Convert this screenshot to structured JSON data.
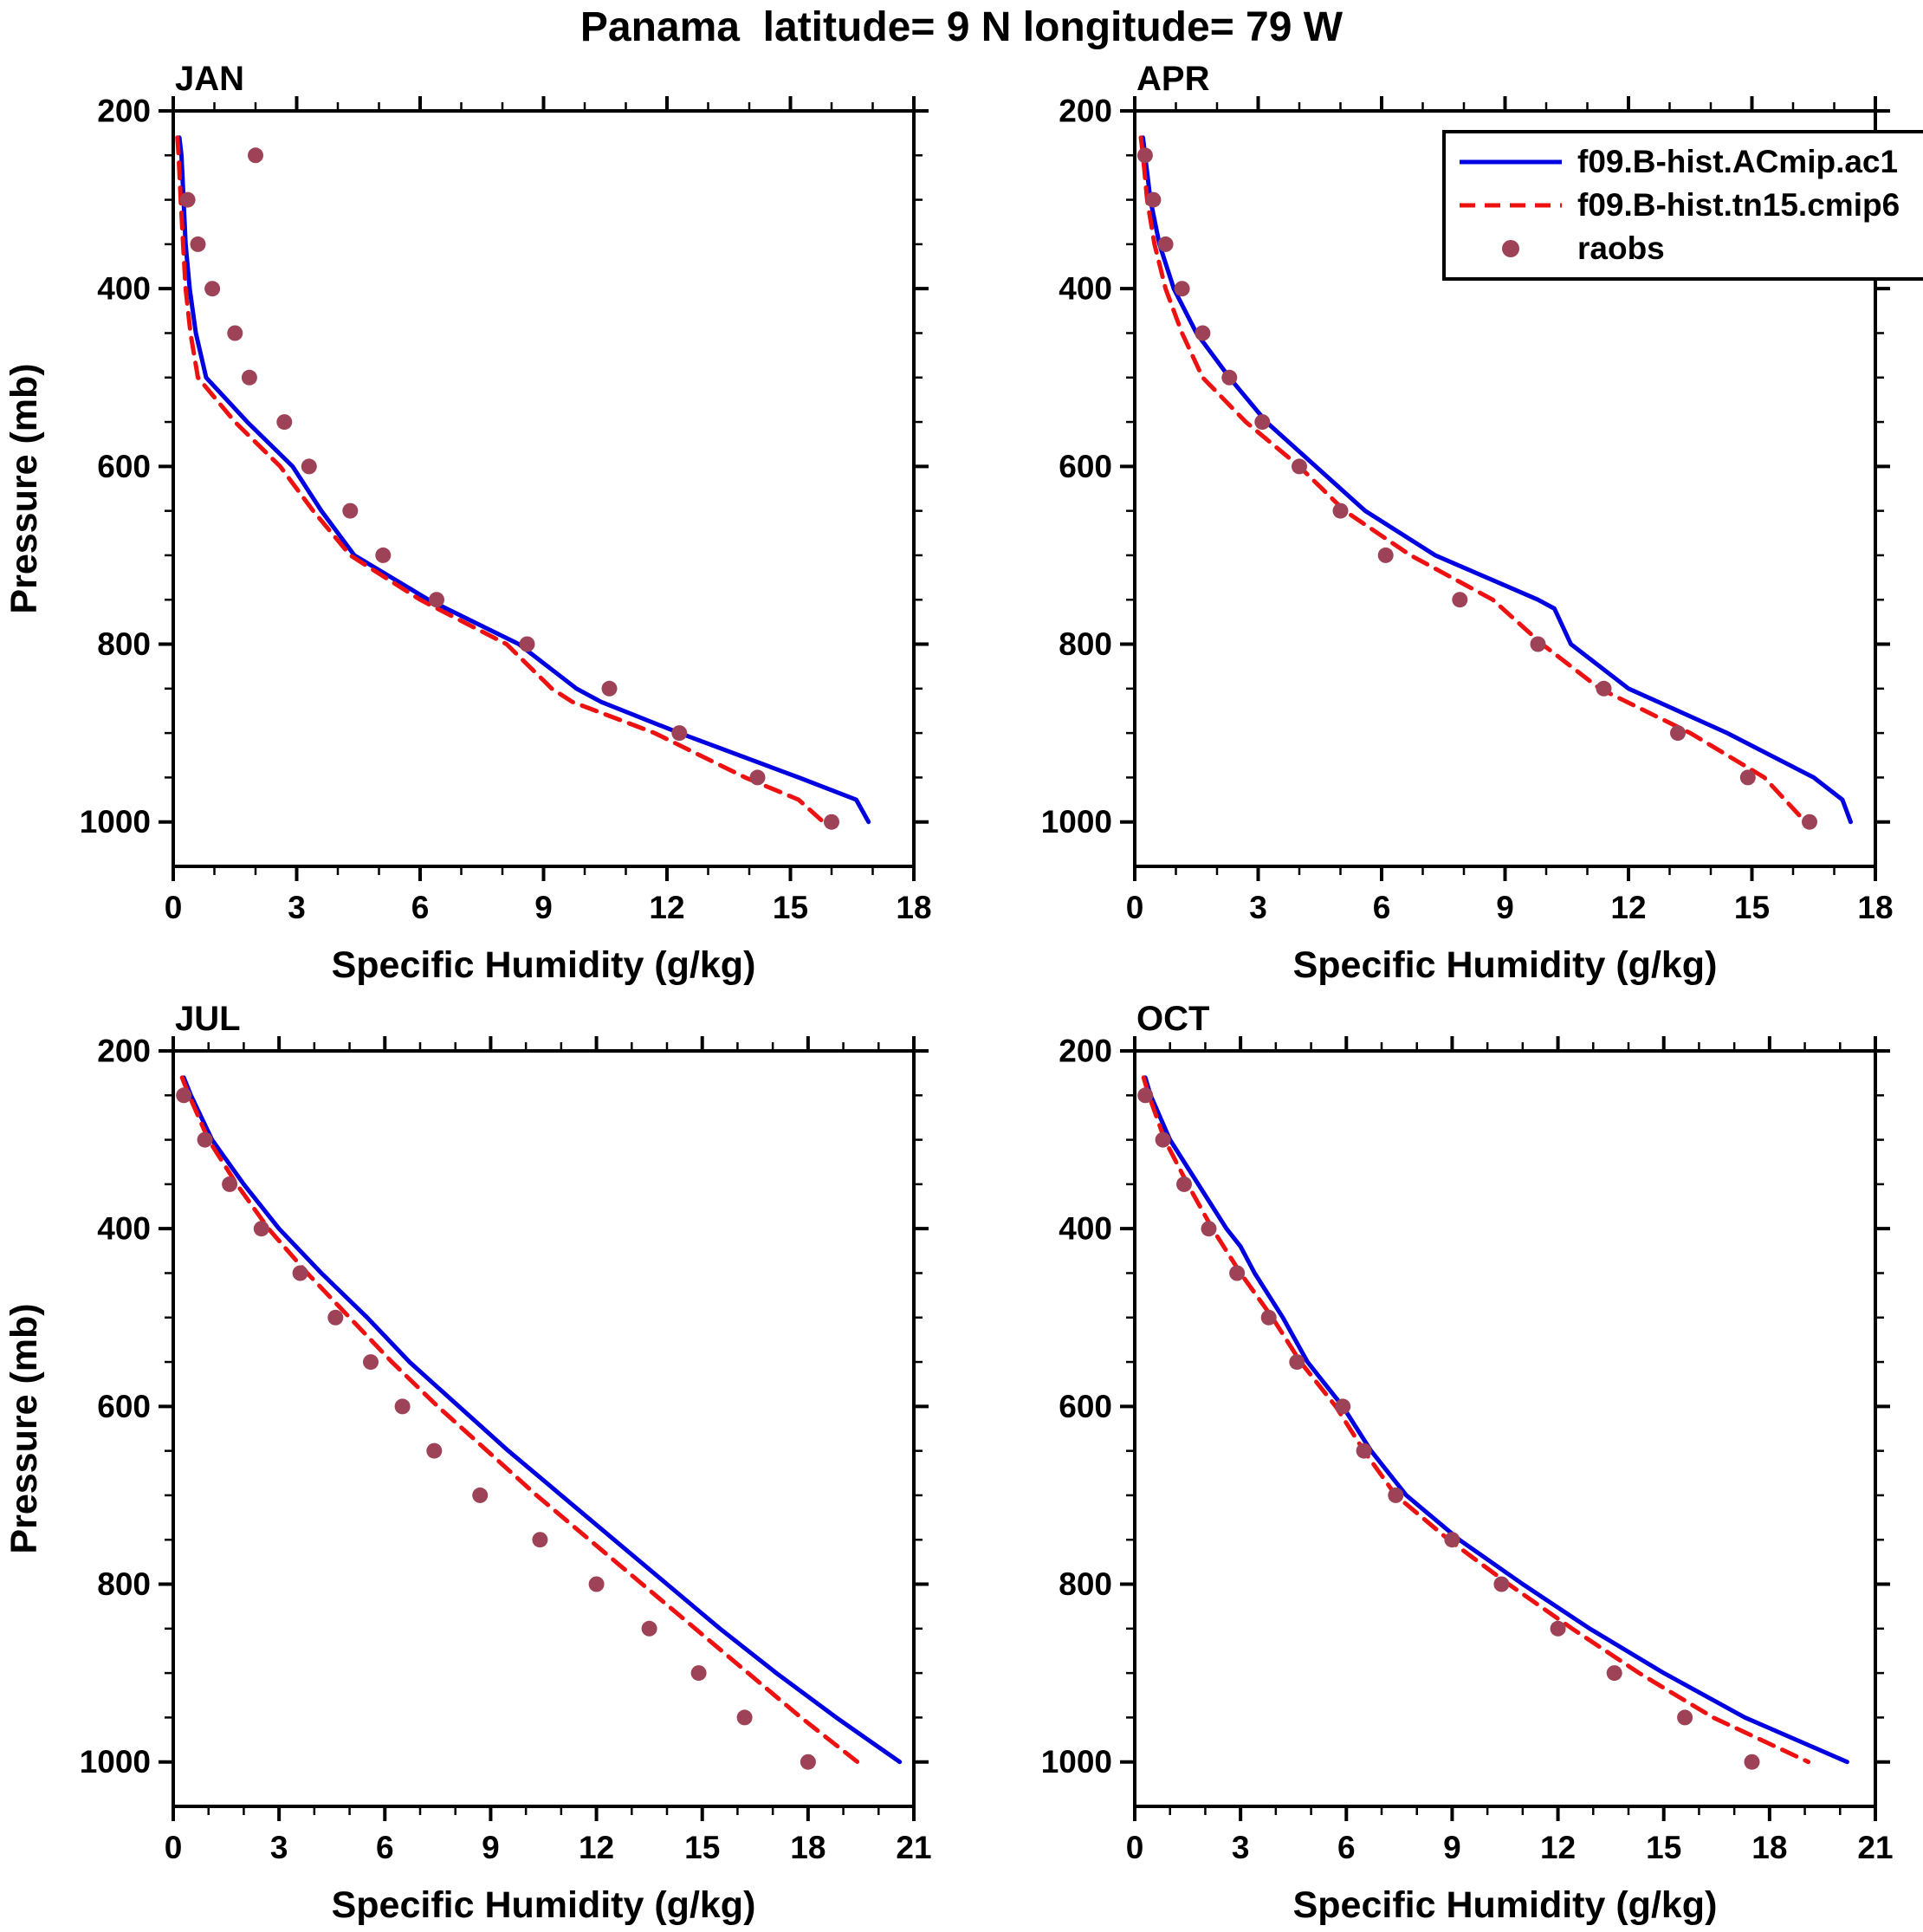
{
  "title": "Panama  latitude= 9 N longitude= 79 W",
  "colors": {
    "acmip": "#0000e0",
    "tn15": "#ee1111",
    "raobs": "#9e4258",
    "axis": "#000000"
  },
  "legend": {
    "entries": [
      {
        "key": "acmip",
        "label": "f09.B-hist.ACmip.ac1",
        "style": "solid"
      },
      {
        "key": "tn15",
        "label": "f09.B-hist.tn15.cmip6",
        "style": "dashed"
      },
      {
        "key": "raobs",
        "label": "raobs",
        "style": "dots"
      }
    ]
  },
  "axes": {
    "xlabel": "Specific Humidity (g/kg)",
    "ylabel": "Pressure (mb)",
    "y_ticks": [
      200,
      400,
      600,
      800,
      1000
    ],
    "y_range": [
      200,
      1050
    ]
  },
  "chart_data": [
    {
      "type": "line",
      "title": "JAN",
      "xlabel": "Specific Humidity (g/kg)",
      "ylabel": "Pressure (mb)",
      "xlim": [
        0,
        18
      ],
      "x_ticks": [
        0,
        3,
        6,
        9,
        12,
        15,
        18
      ],
      "ylim": [
        200,
        1050
      ],
      "y_ticks": [
        200,
        400,
        600,
        800,
        1000
      ],
      "series": [
        {
          "key": "acmip",
          "name": "f09.B-hist.ACmip.ac1",
          "style": "solid",
          "points": [
            [
              0.15,
              230
            ],
            [
              0.2,
              250
            ],
            [
              0.25,
              300
            ],
            [
              0.3,
              350
            ],
            [
              0.4,
              400
            ],
            [
              0.55,
              450
            ],
            [
              0.8,
              500
            ],
            [
              1.8,
              550
            ],
            [
              2.9,
              600
            ],
            [
              3.6,
              650
            ],
            [
              4.4,
              700
            ],
            [
              6.2,
              750
            ],
            [
              8.4,
              800
            ],
            [
              9.8,
              850
            ],
            [
              10.4,
              865
            ],
            [
              12.3,
              900
            ],
            [
              15.2,
              950
            ],
            [
              16.6,
              975
            ],
            [
              16.9,
              1000
            ]
          ]
        },
        {
          "key": "tn15",
          "name": "f09.B-hist.tn15.cmip6",
          "style": "dashed",
          "points": [
            [
              0.1,
              230
            ],
            [
              0.13,
              250
            ],
            [
              0.18,
              300
            ],
            [
              0.24,
              350
            ],
            [
              0.3,
              400
            ],
            [
              0.42,
              450
            ],
            [
              0.6,
              500
            ],
            [
              1.5,
              550
            ],
            [
              2.6,
              600
            ],
            [
              3.4,
              650
            ],
            [
              4.3,
              700
            ],
            [
              6.0,
              750
            ],
            [
              8.1,
              800
            ],
            [
              9.2,
              850
            ],
            [
              9.7,
              865
            ],
            [
              11.7,
              900
            ],
            [
              13.9,
              950
            ],
            [
              15.2,
              975
            ],
            [
              15.8,
              1000
            ]
          ]
        },
        {
          "key": "raobs",
          "name": "raobs",
          "style": "dots",
          "points": [
            [
              2.0,
              250
            ],
            [
              0.35,
              300
            ],
            [
              0.6,
              350
            ],
            [
              0.95,
              400
            ],
            [
              1.5,
              450
            ],
            [
              1.85,
              500
            ],
            [
              2.7,
              550
            ],
            [
              3.3,
              600
            ],
            [
              4.3,
              650
            ],
            [
              5.1,
              700
            ],
            [
              6.4,
              750
            ],
            [
              8.6,
              800
            ],
            [
              10.6,
              850
            ],
            [
              12.3,
              900
            ],
            [
              14.2,
              950
            ],
            [
              16.0,
              1000
            ]
          ]
        }
      ]
    },
    {
      "type": "line",
      "title": "APR",
      "xlabel": "Specific Humidity (g/kg)",
      "ylabel": "",
      "xlim": [
        0,
        18
      ],
      "x_ticks": [
        0,
        3,
        6,
        9,
        12,
        15,
        18
      ],
      "ylim": [
        200,
        1050
      ],
      "y_ticks": [
        200,
        400,
        600,
        800,
        1000
      ],
      "series": [
        {
          "key": "acmip",
          "name": "f09.B-hist.ACmip.ac1",
          "style": "solid",
          "points": [
            [
              0.2,
              230
            ],
            [
              0.25,
              250
            ],
            [
              0.38,
              300
            ],
            [
              0.6,
              350
            ],
            [
              0.95,
              400
            ],
            [
              1.5,
              450
            ],
            [
              2.3,
              500
            ],
            [
              3.2,
              550
            ],
            [
              4.4,
              600
            ],
            [
              5.6,
              650
            ],
            [
              7.3,
              700
            ],
            [
              9.8,
              750
            ],
            [
              10.2,
              760
            ],
            [
              10.6,
              800
            ],
            [
              12.0,
              850
            ],
            [
              14.4,
              900
            ],
            [
              16.5,
              950
            ],
            [
              17.2,
              975
            ],
            [
              17.4,
              1000
            ]
          ]
        },
        {
          "key": "tn15",
          "name": "f09.B-hist.tn15.cmip6",
          "style": "dashed",
          "points": [
            [
              0.15,
              230
            ],
            [
              0.2,
              250
            ],
            [
              0.3,
              300
            ],
            [
              0.48,
              350
            ],
            [
              0.75,
              400
            ],
            [
              1.15,
              450
            ],
            [
              1.65,
              500
            ],
            [
              2.7,
              550
            ],
            [
              4.0,
              600
            ],
            [
              5.1,
              650
            ],
            [
              6.7,
              700
            ],
            [
              8.7,
              750
            ],
            [
              9.9,
              800
            ],
            [
              11.3,
              850
            ],
            [
              13.5,
              900
            ],
            [
              15.3,
              950
            ],
            [
              16.3,
              1000
            ]
          ]
        },
        {
          "key": "raobs",
          "name": "raobs",
          "style": "dots",
          "points": [
            [
              0.25,
              250
            ],
            [
              0.45,
              300
            ],
            [
              0.75,
              350
            ],
            [
              1.15,
              400
            ],
            [
              1.65,
              450
            ],
            [
              2.3,
              500
            ],
            [
              3.1,
              550
            ],
            [
              4.0,
              600
            ],
            [
              5.0,
              650
            ],
            [
              6.1,
              700
            ],
            [
              7.9,
              750
            ],
            [
              9.8,
              800
            ],
            [
              11.4,
              850
            ],
            [
              13.2,
              900
            ],
            [
              14.9,
              950
            ],
            [
              16.4,
              1000
            ]
          ]
        }
      ]
    },
    {
      "type": "line",
      "title": "JUL",
      "xlabel": "Specific Humidity (g/kg)",
      "ylabel": "Pressure (mb)",
      "xlim": [
        0,
        21
      ],
      "x_ticks": [
        0,
        3,
        6,
        9,
        12,
        15,
        18,
        21
      ],
      "ylim": [
        200,
        1050
      ],
      "y_ticks": [
        200,
        400,
        600,
        800,
        1000
      ],
      "series": [
        {
          "key": "acmip",
          "name": "f09.B-hist.ACmip.ac1",
          "style": "solid",
          "points": [
            [
              0.3,
              230
            ],
            [
              0.5,
              250
            ],
            [
              1.1,
              300
            ],
            [
              2.0,
              350
            ],
            [
              3.0,
              400
            ],
            [
              4.2,
              450
            ],
            [
              5.5,
              500
            ],
            [
              6.7,
              550
            ],
            [
              8.1,
              600
            ],
            [
              9.5,
              650
            ],
            [
              11.0,
              700
            ],
            [
              12.5,
              750
            ],
            [
              14.0,
              800
            ],
            [
              15.5,
              850
            ],
            [
              17.1,
              900
            ],
            [
              18.8,
              950
            ],
            [
              20.6,
              1000
            ]
          ]
        },
        {
          "key": "tn15",
          "name": "f09.B-hist.tn15.cmip6",
          "style": "dashed",
          "points": [
            [
              0.25,
              230
            ],
            [
              0.45,
              250
            ],
            [
              1.0,
              300
            ],
            [
              1.8,
              350
            ],
            [
              2.7,
              400
            ],
            [
              3.8,
              450
            ],
            [
              5.0,
              500
            ],
            [
              6.2,
              550
            ],
            [
              7.5,
              600
            ],
            [
              8.9,
              650
            ],
            [
              10.3,
              700
            ],
            [
              11.8,
              750
            ],
            [
              13.3,
              800
            ],
            [
              14.8,
              850
            ],
            [
              16.3,
              900
            ],
            [
              17.8,
              950
            ],
            [
              19.4,
              1000
            ]
          ]
        },
        {
          "key": "raobs",
          "name": "raobs",
          "style": "dots",
          "points": [
            [
              0.3,
              250
            ],
            [
              0.9,
              300
            ],
            [
              1.6,
              350
            ],
            [
              2.5,
              400
            ],
            [
              3.6,
              450
            ],
            [
              4.6,
              500
            ],
            [
              5.6,
              550
            ],
            [
              6.5,
              600
            ],
            [
              7.4,
              650
            ],
            [
              8.7,
              700
            ],
            [
              10.4,
              750
            ],
            [
              12.0,
              800
            ],
            [
              13.5,
              850
            ],
            [
              14.9,
              900
            ],
            [
              16.2,
              950
            ],
            [
              18.0,
              1000
            ]
          ]
        }
      ]
    },
    {
      "type": "line",
      "title": "OCT",
      "xlabel": "Specific Humidity (g/kg)",
      "ylabel": "",
      "xlim": [
        0,
        21
      ],
      "x_ticks": [
        0,
        3,
        6,
        9,
        12,
        15,
        18,
        21
      ],
      "ylim": [
        200,
        1050
      ],
      "y_ticks": [
        200,
        400,
        600,
        800,
        1000
      ],
      "series": [
        {
          "key": "acmip",
          "name": "f09.B-hist.ACmip.ac1",
          "style": "solid",
          "points": [
            [
              0.3,
              230
            ],
            [
              0.45,
              250
            ],
            [
              1.0,
              300
            ],
            [
              1.8,
              350
            ],
            [
              2.6,
              400
            ],
            [
              3.0,
              420
            ],
            [
              3.4,
              450
            ],
            [
              4.2,
              500
            ],
            [
              4.9,
              550
            ],
            [
              5.9,
              600
            ],
            [
              6.7,
              650
            ],
            [
              7.7,
              700
            ],
            [
              9.2,
              750
            ],
            [
              11.0,
              800
            ],
            [
              12.9,
              850
            ],
            [
              15.0,
              900
            ],
            [
              17.3,
              950
            ],
            [
              20.2,
              1000
            ]
          ]
        },
        {
          "key": "tn15",
          "name": "f09.B-hist.tn15.cmip6",
          "style": "dashed",
          "points": [
            [
              0.25,
              230
            ],
            [
              0.4,
              250
            ],
            [
              0.85,
              300
            ],
            [
              1.5,
              350
            ],
            [
              2.2,
              400
            ],
            [
              3.0,
              450
            ],
            [
              3.9,
              500
            ],
            [
              4.7,
              550
            ],
            [
              5.7,
              600
            ],
            [
              6.5,
              650
            ],
            [
              7.4,
              700
            ],
            [
              8.9,
              750
            ],
            [
              10.6,
              800
            ],
            [
              12.4,
              850
            ],
            [
              14.3,
              900
            ],
            [
              16.4,
              950
            ],
            [
              19.1,
              1000
            ]
          ]
        },
        {
          "key": "raobs",
          "name": "raobs",
          "style": "dots",
          "points": [
            [
              0.3,
              250
            ],
            [
              0.8,
              300
            ],
            [
              1.4,
              350
            ],
            [
              2.1,
              400
            ],
            [
              2.9,
              450
            ],
            [
              3.8,
              500
            ],
            [
              4.6,
              550
            ],
            [
              5.9,
              600
            ],
            [
              6.5,
              650
            ],
            [
              7.4,
              700
            ],
            [
              9.0,
              750
            ],
            [
              10.4,
              800
            ],
            [
              12.0,
              850
            ],
            [
              13.6,
              900
            ],
            [
              15.6,
              950
            ],
            [
              17.5,
              1000
            ]
          ]
        }
      ]
    }
  ]
}
